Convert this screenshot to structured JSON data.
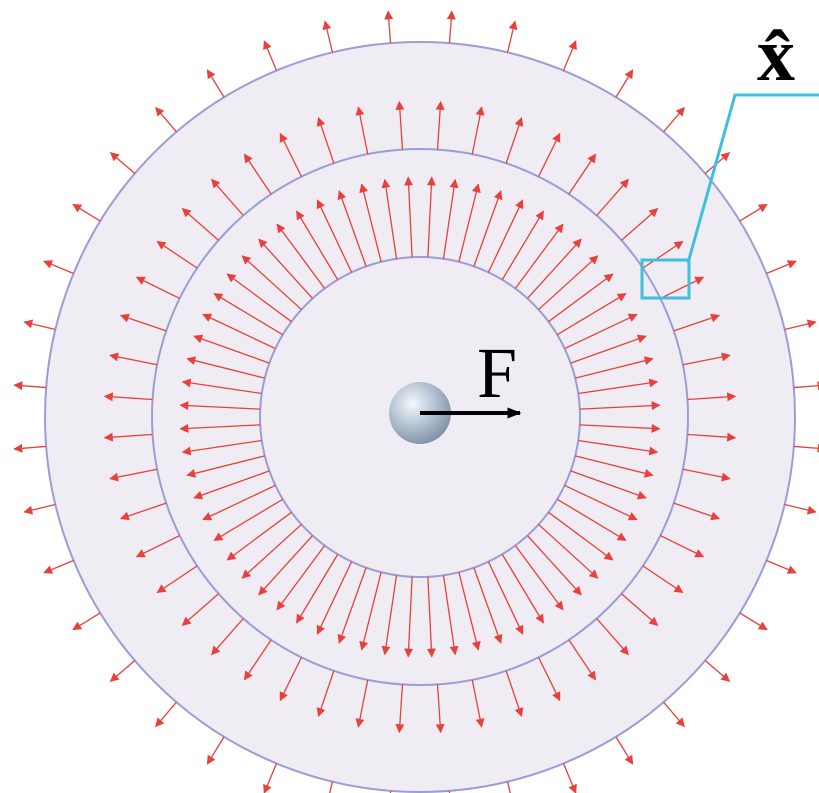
{
  "labels": {
    "force": "F",
    "unit_vector": "x̂"
  }
}
